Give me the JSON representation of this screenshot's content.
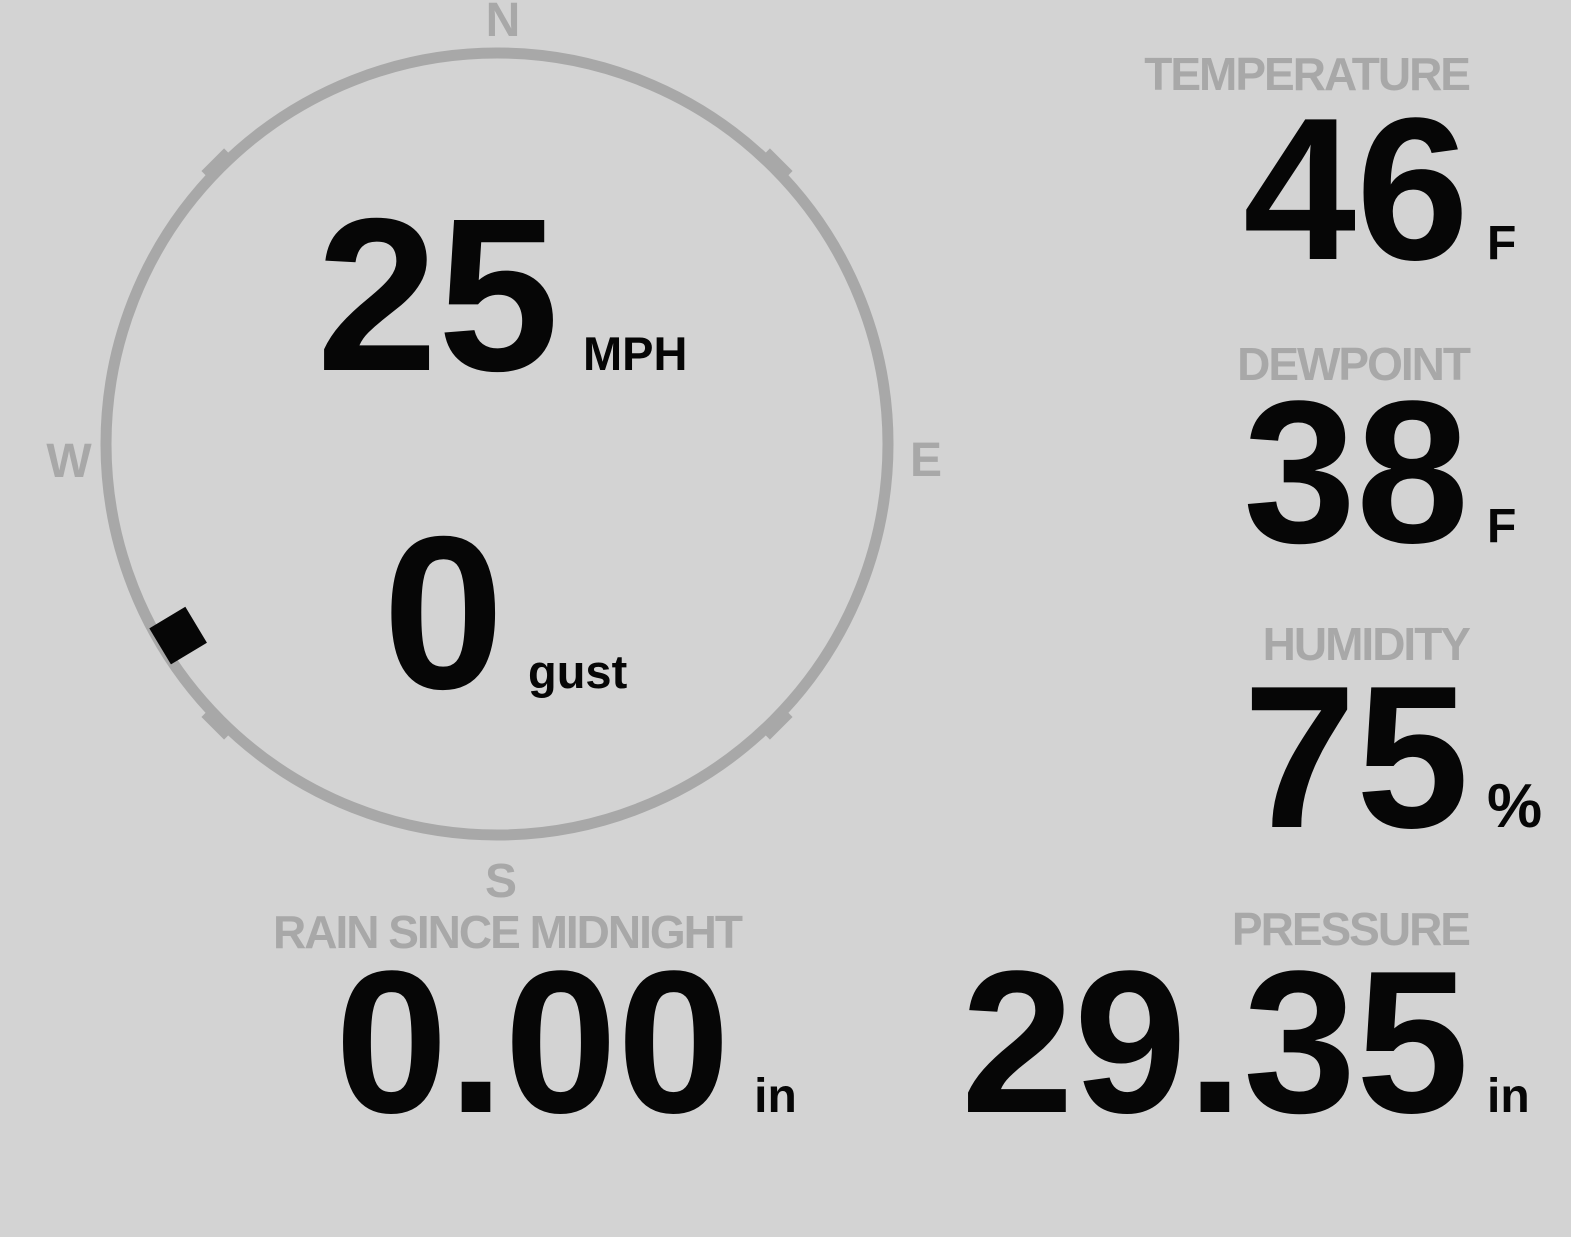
{
  "colors": {
    "background": "#d3d3d3",
    "muted_gray": "#a8a8a8",
    "value_text": "#060606"
  },
  "wind_gauge": {
    "compass": {
      "north": "N",
      "east": "E",
      "south": "S",
      "west": "W"
    },
    "speed": {
      "value": "25",
      "unit": "MPH"
    },
    "gust": {
      "value": "0",
      "unit": "gust"
    },
    "direction_degrees": 239
  },
  "metrics": [
    {
      "id": "temperature",
      "label": "TEMPERATURE",
      "value": "46",
      "unit": "F"
    },
    {
      "id": "dewpoint",
      "label": "DEWPOINT",
      "value": "38",
      "unit": "F"
    },
    {
      "id": "humidity",
      "label": "HUMIDITY",
      "value": "75",
      "unit": "%"
    },
    {
      "id": "pressure",
      "label": "PRESSURE",
      "value": "29.35",
      "unit": "in"
    }
  ],
  "rain": {
    "label": "RAIN SINCE MIDNIGHT",
    "value": "0.00",
    "unit": "in"
  }
}
